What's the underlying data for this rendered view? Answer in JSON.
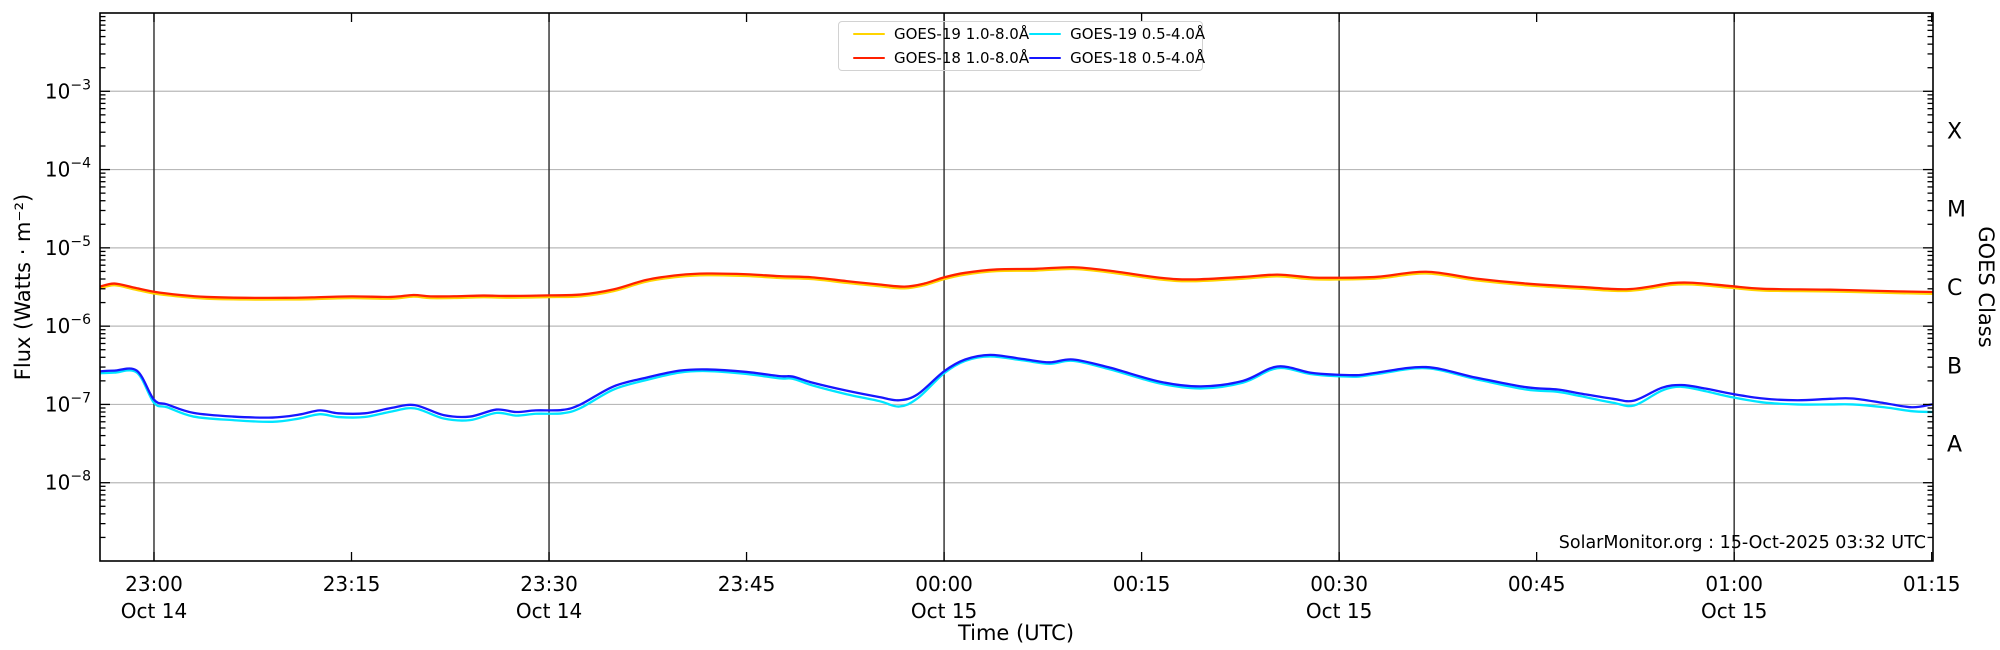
{
  "labels": {
    "y_axis": "Flux (Watts · m⁻²)",
    "x_axis": "Time (UTC)",
    "right_axis": "GOES Class",
    "watermark": "SolarMonitor.org : 15-Oct-2025 03:32 UTC"
  },
  "colors": {
    "goes19_long": "#ffd400",
    "goes18_long": "#ff2000",
    "goes19_short": "#00e5ff",
    "goes18_short": "#1717ff",
    "gridline": "#b9b9b9",
    "date_line": "#2b2b2b",
    "frame": "#000000",
    "legend_border": "#d2d2d2"
  },
  "chart_data": {
    "type": "line",
    "title": "",
    "xlabel": "Time (UTC)",
    "ylabel": "Flux (Watts · m⁻²)",
    "right_label": "GOES Class",
    "watermark": "SolarMonitor.org : 15-Oct-2025 03:32 UTC",
    "x_axis": {
      "t_unit": "minutes after 23:00 UTC (Oct 14)",
      "range": [
        -4.1,
        135.1
      ],
      "ticks": [
        {
          "t": 0,
          "time": "23:00",
          "date": "Oct 14"
        },
        {
          "t": 15,
          "time": "23:15",
          "date": null
        },
        {
          "t": 30,
          "time": "23:30",
          "date": "Oct 14"
        },
        {
          "t": 45,
          "time": "23:45",
          "date": null
        },
        {
          "t": 60,
          "time": "00:00",
          "date": "Oct 15"
        },
        {
          "t": 75,
          "time": "00:15",
          "date": null
        },
        {
          "t": 90,
          "time": "00:30",
          "date": "Oct 15"
        },
        {
          "t": 105,
          "time": "00:45",
          "date": null
        },
        {
          "t": 120,
          "time": "01:00",
          "date": "Oct 15"
        },
        {
          "t": 135,
          "time": "01:15",
          "date": null
        }
      ]
    },
    "y_axis": {
      "scale": "log",
      "range_exponents": [
        -9,
        -2
      ],
      "tick_exponents": [
        -3,
        -4,
        -5,
        -6,
        -7,
        -8
      ],
      "gridline_exponents": [
        -3,
        -4,
        -5,
        -6,
        -7,
        -8
      ]
    },
    "right_axis": {
      "classes": [
        {
          "letter": "X",
          "between_exponents": [
            -4,
            -3
          ]
        },
        {
          "letter": "M",
          "between_exponents": [
            -5,
            -4
          ]
        },
        {
          "letter": "C",
          "between_exponents": [
            -6,
            -5
          ]
        },
        {
          "letter": "B",
          "between_exponents": [
            -7,
            -6
          ]
        },
        {
          "letter": "A",
          "between_exponents": [
            -8,
            -7
          ]
        }
      ]
    },
    "series": [
      {
        "name": "GOES-19 1.0-8.0Å",
        "color_key": "goes19_long",
        "color": "#ffd400",
        "points": [
          [
            -4.1,
            3.04e-06
          ],
          [
            -3,
            3.33e-06
          ],
          [
            -1.5,
            2.95e-06
          ],
          [
            0,
            2.61e-06
          ],
          [
            2,
            2.38e-06
          ],
          [
            4,
            2.24e-06
          ],
          [
            7,
            2.19e-06
          ],
          [
            10,
            2.19e-06
          ],
          [
            12,
            2.21e-06
          ],
          [
            15,
            2.28e-06
          ],
          [
            18,
            2.24e-06
          ],
          [
            19.7,
            2.38e-06
          ],
          [
            21,
            2.28e-06
          ],
          [
            23,
            2.29e-06
          ],
          [
            25,
            2.34e-06
          ],
          [
            27,
            2.31e-06
          ],
          [
            30,
            2.35e-06
          ],
          [
            32.4,
            2.4e-06
          ],
          [
            34.9,
            2.8e-06
          ],
          [
            37.4,
            3.71e-06
          ],
          [
            39.9,
            4.28e-06
          ],
          [
            42,
            4.47e-06
          ],
          [
            45,
            4.37e-06
          ],
          [
            47.5,
            4.13e-06
          ],
          [
            50,
            3.99e-06
          ],
          [
            52.6,
            3.57e-06
          ],
          [
            55.1,
            3.23e-06
          ],
          [
            57,
            3.04e-06
          ],
          [
            58.5,
            3.33e-06
          ],
          [
            60,
            3.99e-06
          ],
          [
            61.6,
            4.56e-06
          ],
          [
            64,
            5.04e-06
          ],
          [
            67,
            5.13e-06
          ],
          [
            69.8,
            5.37e-06
          ],
          [
            72.6,
            4.85e-06
          ],
          [
            76.4,
            3.94e-06
          ],
          [
            78.9,
            3.75e-06
          ],
          [
            82.7,
            4.04e-06
          ],
          [
            85.3,
            4.32e-06
          ],
          [
            87.8,
            3.99e-06
          ],
          [
            89.7,
            3.94e-06
          ],
          [
            92.9,
            4.06e-06
          ],
          [
            96.6,
            4.7e-06
          ],
          [
            100.4,
            3.85e-06
          ],
          [
            104.2,
            3.33e-06
          ],
          [
            108.3,
            3.01e-06
          ],
          [
            112,
            2.82e-06
          ],
          [
            115.3,
            3.37e-06
          ],
          [
            117.1,
            3.38e-06
          ],
          [
            119.7,
            3.09e-06
          ],
          [
            122.2,
            2.85e-06
          ],
          [
            127.3,
            2.77e-06
          ],
          [
            132.4,
            2.64e-06
          ],
          [
            135,
            2.59e-06
          ]
        ]
      },
      {
        "name": "GOES-18 1.0-8.0Å",
        "color_key": "goes18_long",
        "color": "#ff2000",
        "points": [
          [
            -4.1,
            3.2e-06
          ],
          [
            -3,
            3.5e-06
          ],
          [
            -1.5,
            3.1e-06
          ],
          [
            0,
            2.75e-06
          ],
          [
            2,
            2.5e-06
          ],
          [
            4,
            2.36e-06
          ],
          [
            7,
            2.3e-06
          ],
          [
            10,
            2.3e-06
          ],
          [
            12,
            2.33e-06
          ],
          [
            15,
            2.4e-06
          ],
          [
            18,
            2.36e-06
          ],
          [
            19.7,
            2.5e-06
          ],
          [
            21,
            2.4e-06
          ],
          [
            23,
            2.41e-06
          ],
          [
            25,
            2.46e-06
          ],
          [
            27,
            2.43e-06
          ],
          [
            30,
            2.47e-06
          ],
          [
            32.4,
            2.53e-06
          ],
          [
            34.9,
            2.95e-06
          ],
          [
            37.4,
            3.9e-06
          ],
          [
            39.9,
            4.5e-06
          ],
          [
            42,
            4.7e-06
          ],
          [
            45,
            4.6e-06
          ],
          [
            47.5,
            4.35e-06
          ],
          [
            50,
            4.2e-06
          ],
          [
            52.6,
            3.76e-06
          ],
          [
            55.1,
            3.4e-06
          ],
          [
            57,
            3.2e-06
          ],
          [
            58.5,
            3.5e-06
          ],
          [
            60,
            4.2e-06
          ],
          [
            61.6,
            4.8e-06
          ],
          [
            64,
            5.3e-06
          ],
          [
            67,
            5.4e-06
          ],
          [
            69.8,
            5.65e-06
          ],
          [
            72.6,
            5.1e-06
          ],
          [
            76.4,
            4.15e-06
          ],
          [
            78.9,
            3.95e-06
          ],
          [
            82.7,
            4.25e-06
          ],
          [
            85.3,
            4.55e-06
          ],
          [
            87.8,
            4.2e-06
          ],
          [
            89.7,
            4.15e-06
          ],
          [
            92.9,
            4.27e-06
          ],
          [
            96.6,
            4.95e-06
          ],
          [
            100.4,
            4.05e-06
          ],
          [
            104.2,
            3.5e-06
          ],
          [
            108.3,
            3.17e-06
          ],
          [
            112,
            2.97e-06
          ],
          [
            115.3,
            3.55e-06
          ],
          [
            117.1,
            3.56e-06
          ],
          [
            119.7,
            3.25e-06
          ],
          [
            122.2,
            3e-06
          ],
          [
            127.3,
            2.92e-06
          ],
          [
            132.4,
            2.78e-06
          ],
          [
            135,
            2.73e-06
          ]
        ]
      },
      {
        "name": "GOES-19 0.5-4.0Å",
        "color_key": "goes19_short",
        "color": "#00e5ff",
        "points": [
          [
            -4.1,
            2.5e-07
          ],
          [
            -3,
            2.55e-07
          ],
          [
            -1.3,
            2.55e-07
          ],
          [
            0,
            1.05e-07
          ],
          [
            1,
            9.2e-08
          ],
          [
            3,
            7e-08
          ],
          [
            6,
            6.3e-08
          ],
          [
            9,
            6e-08
          ],
          [
            11,
            6.6e-08
          ],
          [
            12.6,
            7.5e-08
          ],
          [
            14,
            6.9e-08
          ],
          [
            16,
            6.9e-08
          ],
          [
            18,
            8.1e-08
          ],
          [
            19.8,
            8.9e-08
          ],
          [
            22,
            6.6e-08
          ],
          [
            24,
            6.3e-08
          ],
          [
            26,
            7.8e-08
          ],
          [
            27.5,
            7.2e-08
          ],
          [
            29,
            7.6e-08
          ],
          [
            31,
            7.7e-08
          ],
          [
            32.4,
            9e-08
          ],
          [
            34.9,
            1.55e-07
          ],
          [
            37.4,
            2.05e-07
          ],
          [
            39.9,
            2.55e-07
          ],
          [
            42,
            2.67e-07
          ],
          [
            45,
            2.45e-07
          ],
          [
            47.5,
            2.15e-07
          ],
          [
            48.5,
            2.13e-07
          ],
          [
            50,
            1.75e-07
          ],
          [
            52.6,
            1.35e-07
          ],
          [
            55.1,
            1.1e-07
          ],
          [
            56.6,
            9.4e-08
          ],
          [
            58,
            1.2e-07
          ],
          [
            60,
            2.5e-07
          ],
          [
            61.6,
            3.6e-07
          ],
          [
            63.5,
            4.1e-07
          ],
          [
            66,
            3.65e-07
          ],
          [
            68,
            3.3e-07
          ],
          [
            69.8,
            3.6e-07
          ],
          [
            72.6,
            2.8e-07
          ],
          [
            76.4,
            1.85e-07
          ],
          [
            79.5,
            1.6e-07
          ],
          [
            82.7,
            1.9e-07
          ],
          [
            85.3,
            2.9e-07
          ],
          [
            87.8,
            2.45e-07
          ],
          [
            89.7,
            2.3e-07
          ],
          [
            91.5,
            2.27e-07
          ],
          [
            92.9,
            2.45e-07
          ],
          [
            96.6,
            2.9e-07
          ],
          [
            100.4,
            2.1e-07
          ],
          [
            104.2,
            1.55e-07
          ],
          [
            106.6,
            1.45e-07
          ],
          [
            108.3,
            1.28e-07
          ],
          [
            110.8,
            1.05e-07
          ],
          [
            112.4,
            9.7e-08
          ],
          [
            114.5,
            1.5e-07
          ],
          [
            116,
            1.68e-07
          ],
          [
            117.8,
            1.48e-07
          ],
          [
            119.7,
            1.25e-07
          ],
          [
            122.2,
            1.06e-07
          ],
          [
            124.8,
            1e-07
          ],
          [
            127.3,
            1e-07
          ],
          [
            129,
            1e-07
          ],
          [
            131.4,
            9.2e-08
          ],
          [
            133.5,
            8.2e-08
          ],
          [
            135,
            8e-08
          ]
        ]
      },
      {
        "name": "GOES-18 0.5-4.0Å",
        "color_key": "goes18_short",
        "color": "#1717ff",
        "points": [
          [
            -4.1,
            2.65e-07
          ],
          [
            -3,
            2.7e-07
          ],
          [
            -1.3,
            2.7e-07
          ],
          [
            0,
            1.15e-07
          ],
          [
            1,
            1e-07
          ],
          [
            3,
            7.8e-08
          ],
          [
            6,
            7e-08
          ],
          [
            9,
            6.8e-08
          ],
          [
            11,
            7.4e-08
          ],
          [
            12.6,
            8.4e-08
          ],
          [
            14,
            7.7e-08
          ],
          [
            16,
            7.7e-08
          ],
          [
            18,
            9e-08
          ],
          [
            19.8,
            9.8e-08
          ],
          [
            22,
            7.3e-08
          ],
          [
            24,
            7e-08
          ],
          [
            26,
            8.6e-08
          ],
          [
            27.5,
            8e-08
          ],
          [
            29,
            8.4e-08
          ],
          [
            31,
            8.5e-08
          ],
          [
            32.4,
            1e-07
          ],
          [
            34.9,
            1.7e-07
          ],
          [
            37.4,
            2.2e-07
          ],
          [
            39.9,
            2.7e-07
          ],
          [
            42,
            2.8e-07
          ],
          [
            45,
            2.6e-07
          ],
          [
            47.5,
            2.3e-07
          ],
          [
            48.5,
            2.27e-07
          ],
          [
            50,
            1.9e-07
          ],
          [
            52.6,
            1.5e-07
          ],
          [
            55.1,
            1.24e-07
          ],
          [
            56.6,
            1.13e-07
          ],
          [
            58,
            1.35e-07
          ],
          [
            60,
            2.65e-07
          ],
          [
            61.6,
            3.75e-07
          ],
          [
            63.5,
            4.3e-07
          ],
          [
            66,
            3.8e-07
          ],
          [
            68,
            3.45e-07
          ],
          [
            69.8,
            3.75e-07
          ],
          [
            72.6,
            2.95e-07
          ],
          [
            76.4,
            1.95e-07
          ],
          [
            79.5,
            1.7e-07
          ],
          [
            82.7,
            2e-07
          ],
          [
            85.3,
            3.05e-07
          ],
          [
            87.8,
            2.55e-07
          ],
          [
            89.7,
            2.4e-07
          ],
          [
            91.5,
            2.37e-07
          ],
          [
            92.9,
            2.55e-07
          ],
          [
            96.6,
            3e-07
          ],
          [
            100.4,
            2.2e-07
          ],
          [
            104.2,
            1.66e-07
          ],
          [
            106.6,
            1.55e-07
          ],
          [
            108.3,
            1.38e-07
          ],
          [
            110.8,
            1.18e-07
          ],
          [
            112.4,
            1.12e-07
          ],
          [
            114.5,
            1.63e-07
          ],
          [
            116,
            1.77e-07
          ],
          [
            117.8,
            1.6e-07
          ],
          [
            119.7,
            1.38e-07
          ],
          [
            122.2,
            1.19e-07
          ],
          [
            124.8,
            1.13e-07
          ],
          [
            127.3,
            1.18e-07
          ],
          [
            129,
            1.19e-07
          ],
          [
            131.4,
            1.04e-07
          ],
          [
            133.5,
            9.2e-08
          ],
          [
            135,
            1e-07
          ]
        ]
      }
    ],
    "legend": {
      "columns": 2,
      "entries": [
        "GOES-19 1.0-8.0Å",
        "GOES-18 1.0-8.0Å",
        "GOES-19 0.5-4.0Å",
        "GOES-18 0.5-4.0Å"
      ]
    }
  }
}
